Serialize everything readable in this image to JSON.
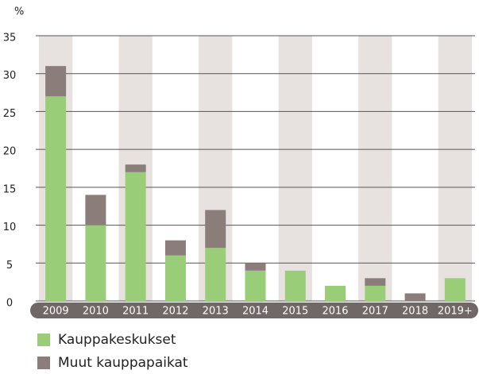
{
  "chart_data": {
    "type": "bar",
    "stacked": true,
    "y_unit_label": "%",
    "categories": [
      "2009",
      "2010",
      "2011",
      "2012",
      "2013",
      "2014",
      "2015",
      "2016",
      "2017",
      "2018",
      "2019+"
    ],
    "series": [
      {
        "name": "Kauppakeskukset",
        "color": "#9acd78",
        "values": [
          27,
          10,
          17,
          6,
          7,
          4,
          4,
          2,
          2,
          0,
          3
        ]
      },
      {
        "name": "Muut kauppapaikat",
        "color": "#8b7d79",
        "values": [
          4,
          4,
          1,
          2,
          5,
          1,
          0,
          0,
          1,
          1,
          0
        ]
      }
    ],
    "ylim": [
      0,
      35
    ],
    "yticks": [
      0,
      5,
      10,
      15,
      20,
      25,
      30,
      35
    ],
    "grid": true
  }
}
